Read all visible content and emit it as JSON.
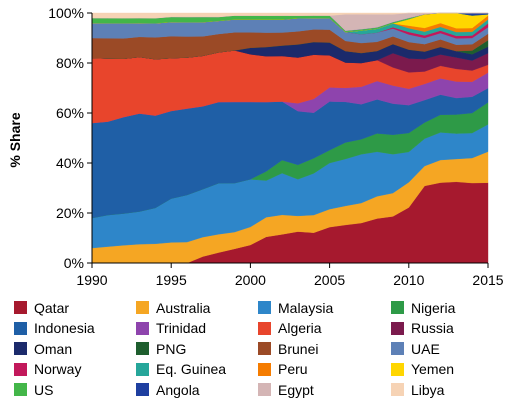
{
  "chart_data": {
    "type": "area",
    "stacked": true,
    "ylabel": "% Share",
    "xlabel": "",
    "xlim": [
      1990,
      2015
    ],
    "ylim": [
      0,
      100
    ],
    "x_ticks": [
      1990,
      1995,
      2000,
      2005,
      2010,
      2015
    ],
    "y_ticks": [
      0,
      20,
      40,
      60,
      80,
      100
    ],
    "y_tick_labels": [
      "0%",
      "20%",
      "40%",
      "60%",
      "80%",
      "100%"
    ],
    "grid": false,
    "legend_position": "bottom",
    "x": [
      1990,
      1991,
      1992,
      1993,
      1994,
      1995,
      1996,
      1997,
      1998,
      1999,
      2000,
      2001,
      2002,
      2003,
      2004,
      2005,
      2006,
      2007,
      2008,
      2009,
      2010,
      2011,
      2012,
      2013,
      2014,
      2015
    ],
    "series": [
      {
        "name": "Qatar",
        "color": "#a6192e",
        "values": [
          0,
          0,
          0,
          0,
          0,
          0,
          0,
          2.5,
          4,
          5.5,
          7,
          10,
          11,
          12,
          12,
          14,
          15,
          16,
          17,
          18,
          22,
          31,
          32,
          32,
          32,
          31
        ]
      },
      {
        "name": "Australia",
        "color": "#f5a623",
        "values": [
          6,
          6.5,
          7,
          7.5,
          7.5,
          8,
          8,
          7.5,
          7,
          6.5,
          7,
          7.5,
          7.5,
          6,
          7,
          7,
          7.5,
          8,
          8.5,
          9,
          10,
          8,
          9,
          9,
          10,
          12
        ]
      },
      {
        "name": "Malaysia",
        "color": "#2e86c9",
        "values": [
          12,
          12.5,
          12.5,
          13,
          14,
          17,
          18,
          18.5,
          19.5,
          19,
          18.5,
          14,
          16,
          14,
          16.5,
          18,
          18.5,
          19.5,
          17,
          15,
          12,
          11,
          11,
          10,
          10,
          10.5
        ]
      },
      {
        "name": "Nigeria",
        "color": "#2e9a47",
        "values": [
          0,
          0,
          0,
          0,
          0,
          0,
          0,
          0,
          0,
          0,
          0,
          3.5,
          5,
          5.5,
          6,
          5,
          6.5,
          6,
          7,
          7.5,
          7.5,
          6.5,
          7,
          7.5,
          8,
          8.5
        ]
      },
      {
        "name": "Indonesia",
        "color": "#1f5fa6",
        "values": [
          38,
          37,
          38,
          39,
          36,
          34,
          33,
          32,
          31,
          31.5,
          30,
          26.5,
          22.5,
          20.5,
          18,
          19,
          16,
          14,
          13,
          12,
          11,
          9,
          8,
          6.5,
          6.5,
          5.5
        ]
      },
      {
        "name": "Trinidad",
        "color": "#8e44ad",
        "values": [
          0,
          0,
          0,
          0,
          0,
          0,
          0,
          0,
          0,
          0,
          0,
          0,
          0,
          3,
          5.5,
          5.5,
          5.5,
          7,
          7,
          7,
          6.5,
          6.5,
          6.5,
          6.5,
          6,
          6
        ]
      },
      {
        "name": "Algeria",
        "color": "#e8452c",
        "values": [
          26,
          25,
          23,
          22.5,
          22,
          20.5,
          19.5,
          19.5,
          19,
          20,
          18.5,
          17.5,
          17.5,
          17.5,
          17.5,
          12.5,
          10,
          9.5,
          8,
          7,
          6.5,
          5,
          5,
          5,
          4.5,
          3
        ]
      },
      {
        "name": "Russia",
        "color": "#7b1a4d",
        "values": [
          0,
          0,
          0,
          0,
          0,
          0,
          0,
          0,
          0,
          0,
          0,
          0,
          0,
          0,
          0,
          0,
          0,
          0,
          0,
          5.5,
          5.5,
          5,
          4.5,
          4.5,
          4,
          4.5
        ]
      },
      {
        "name": "Oman",
        "color": "#1b2a6b",
        "values": [
          0,
          0,
          0,
          0,
          0,
          0,
          0,
          0,
          0,
          0,
          2.5,
          3.5,
          4,
          5,
          5,
          5,
          4.5,
          4,
          3.5,
          3.5,
          3.5,
          3,
          3,
          2.5,
          2.5,
          2.5
        ]
      },
      {
        "name": "PNG",
        "color": "#1e5e2e",
        "values": [
          0,
          0,
          0,
          0,
          0,
          0,
          0,
          0,
          0,
          0,
          0,
          0,
          0,
          0,
          0,
          0,
          0,
          0,
          0,
          0,
          0,
          0,
          0,
          0,
          1.5,
          2.5
        ]
      },
      {
        "name": "Brunei",
        "color": "#9b4a26",
        "values": [
          8,
          8,
          8,
          8,
          8.5,
          8.5,
          8,
          7.5,
          7,
          7,
          6,
          5.5,
          5,
          5,
          5,
          5,
          4,
          4,
          3.5,
          3,
          3,
          3,
          3,
          2.5,
          2.5,
          2.5
        ]
      },
      {
        "name": "UAE",
        "color": "#5d80b6",
        "values": [
          6,
          6,
          6,
          5.5,
          5.5,
          5.5,
          5.5,
          5.5,
          5,
          5,
          5,
          5,
          5,
          5,
          4.5,
          4.5,
          3.5,
          3.5,
          3.5,
          3,
          3,
          2.5,
          2.5,
          2.5,
          2.5,
          2.5
        ]
      },
      {
        "name": "Norway",
        "color": "#c2185b",
        "values": [
          0,
          0,
          0,
          0,
          0,
          0,
          0,
          0,
          0,
          0,
          0,
          0,
          0,
          0,
          0,
          0,
          0,
          0,
          0,
          0.5,
          1,
          1,
          1,
          1,
          1,
          1.5
        ]
      },
      {
        "name": "Eq. Guinea",
        "color": "#26a69a",
        "values": [
          0,
          0,
          0,
          0,
          0,
          0,
          0,
          0,
          0,
          0,
          0,
          0,
          0,
          0,
          0,
          0,
          0,
          1.5,
          1.5,
          1.5,
          1.5,
          1.5,
          1.5,
          1.5,
          1.5,
          1.5
        ]
      },
      {
        "name": "Peru",
        "color": "#f57c00",
        "values": [
          0,
          0,
          0,
          0,
          0,
          0,
          0,
          0,
          0,
          0,
          0,
          0,
          0,
          0,
          0,
          0,
          0,
          0,
          0,
          0,
          1,
          1.5,
          1.5,
          1.5,
          1.5,
          1.5
        ]
      },
      {
        "name": "Yemen",
        "color": "#ffd600",
        "values": [
          0,
          0,
          0,
          0,
          0,
          0,
          0,
          0,
          0,
          0,
          0,
          0,
          0,
          0,
          0,
          0,
          0,
          0,
          0,
          0,
          2.5,
          5.5,
          4,
          6,
          5,
          0.5
        ]
      },
      {
        "name": "US",
        "color": "#43b649",
        "values": [
          2,
          2,
          2,
          2,
          2,
          2,
          2,
          2,
          1.5,
          1.5,
          1.5,
          1.5,
          1.5,
          1,
          1,
          1,
          0.5,
          0.5,
          0.5,
          0.5,
          0.5,
          0,
          0,
          0,
          0,
          0
        ]
      },
      {
        "name": "Angola",
        "color": "#1e3fa0",
        "values": [
          0,
          0,
          0,
          0,
          0,
          0,
          0,
          0,
          0,
          0,
          0,
          0,
          0,
          0,
          0,
          0,
          0,
          0,
          0,
          0,
          0,
          0,
          0,
          0,
          1,
          0.5
        ]
      },
      {
        "name": "Egypt",
        "color": "#d4b5b5",
        "values": [
          0,
          0,
          0,
          0,
          0,
          0,
          0,
          0,
          0,
          0,
          0,
          0,
          0,
          0,
          0,
          0,
          6.5,
          6,
          5,
          3,
          2,
          0.5,
          0,
          0,
          0,
          0
        ]
      },
      {
        "name": "Libya",
        "color": "#f6d3b5",
        "values": [
          2,
          2,
          2,
          2,
          2,
          1.5,
          1.5,
          1.5,
          1.5,
          1,
          1,
          1,
          1,
          1,
          1,
          1,
          0.5,
          0.5,
          0.5,
          0.5,
          0,
          0,
          0,
          0,
          0,
          0
        ]
      }
    ]
  }
}
